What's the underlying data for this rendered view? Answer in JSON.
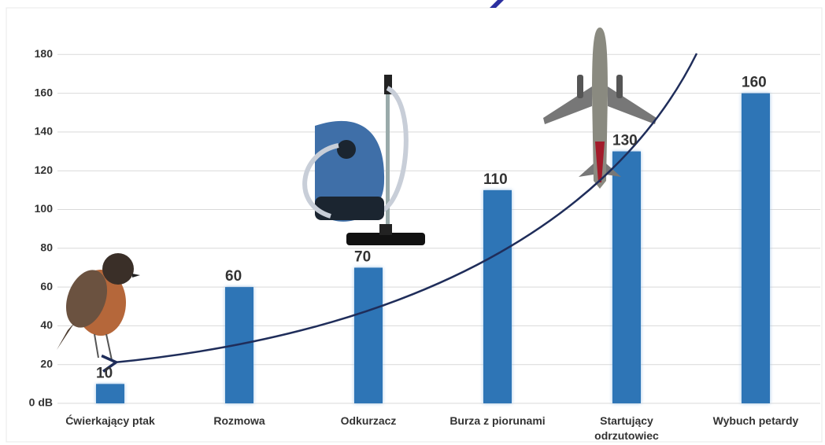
{
  "chart_data": {
    "type": "bar",
    "categories": [
      "Ćwierkający ptak",
      "Rozmowa",
      "Odkurzacz",
      "Burza z piorunami",
      "Startujący odrzutowiec",
      "Wybuch petardy"
    ],
    "values": [
      10,
      60,
      70,
      110,
      130,
      160
    ],
    "color": "#2e75b6",
    "ylim": [
      0,
      200
    ],
    "yticks": [
      {
        "value": 0,
        "label": "0 dB"
      },
      20,
      40,
      60,
      80,
      100,
      120,
      140,
      160,
      180
    ],
    "grid": true
  }
}
